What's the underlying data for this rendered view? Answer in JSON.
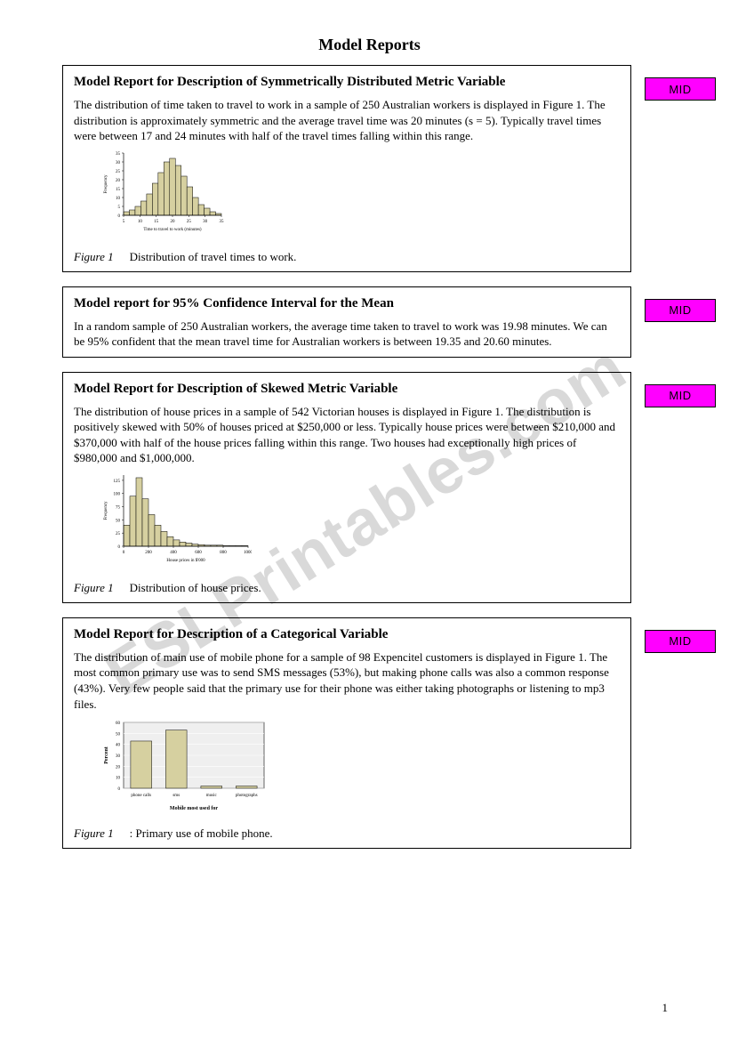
{
  "page": {
    "title": "Model Reports",
    "number": "1",
    "watermark": "ESLPrintables.com"
  },
  "sections": [
    {
      "title": "Model Report for Description of Symmetrically Distributed Metric Variable",
      "badge": "MID",
      "body": "The distribution of time taken to travel to work in a sample of 250 Australian workers is displayed in Figure 1. The distribution is approximately symmetric and the average travel time was 20 minutes (s = 5). Typically travel times were between 17 and 24 minutes with half of the travel times falling within this range.",
      "figure": {
        "label": "Figure 1",
        "caption": "Distribution of travel times to work.",
        "chart": {
          "type": "histogram",
          "width": 140,
          "height": 100,
          "bar_color": "#d6d0a0",
          "bar_border": "#000000",
          "axis_color": "#000000",
          "background": "#ffffff",
          "xlabel": "Time to travel to work (minutes)",
          "ylabel": "Frequency",
          "x_ticks": [
            5,
            10,
            15,
            20,
            25,
            30,
            35
          ],
          "y_ticks": [
            0,
            5,
            10,
            15,
            20,
            25,
            30,
            35
          ],
          "values": [
            2,
            3,
            5,
            8,
            12,
            18,
            24,
            30,
            32,
            28,
            22,
            16,
            10,
            6,
            4,
            2,
            1
          ],
          "ymax": 35
        }
      }
    },
    {
      "title": "Model report for 95% Confidence Interval for the Mean",
      "badge": "MID",
      "body": "In a random sample of 250 Australian workers, the average time taken to travel to work was 19.98 minutes. We can be 95% confident that the mean travel time for Australian workers is between 19.35 and 20.60 minutes."
    },
    {
      "title": "Model Report for Description of Skewed Metric Variable",
      "badge": "MID",
      "body": "The distribution of house prices in a sample of 542 Victorian houses is displayed in Figure 1. The distribution is positively skewed with 50% of houses priced at $250,000 or less. Typically house prices were between $210,000 and $370,000 with half of the house prices falling within this range. Two houses had exceptionally high prices of $980,000 and $1,000,000.",
      "figure": {
        "label": "Figure 1",
        "caption": "Distribution of house prices.",
        "chart": {
          "type": "histogram",
          "width": 170,
          "height": 110,
          "bar_color": "#d6d0a0",
          "bar_border": "#000000",
          "axis_color": "#000000",
          "background": "#ffffff",
          "xlabel": "House prices in $'000",
          "ylabel": "Frequency",
          "x_ticks": [
            0,
            200,
            400,
            600,
            800,
            1000
          ],
          "y_ticks": [
            0,
            25,
            50,
            75,
            100,
            125
          ],
          "values": [
            40,
            95,
            130,
            90,
            60,
            40,
            28,
            18,
            12,
            8,
            6,
            4,
            3,
            2,
            2,
            2,
            1,
            1,
            1,
            1
          ],
          "ymax": 135
        }
      }
    },
    {
      "title": "Model Report for Description of a Categorical Variable",
      "badge": "MID",
      "body": "The distribution of main use of mobile phone for a sample of 98 Expencitel customers is displayed in Figure 1. The most common primary use was to send SMS messages (53%), but making phone calls was also a common response (43%). Very few people said that the primary use for their phone was either taking photographs or listening to mp3 files.",
      "figure": {
        "label": "Figure 1",
        "caption": ": Primary use of mobile phone.",
        "chart": {
          "type": "bar",
          "width": 190,
          "height": 110,
          "bar_color": "#d6d0a0",
          "bar_border": "#000000",
          "axis_color": "#000000",
          "plot_background": "#efefef",
          "xlabel": "Mobile most used for",
          "ylabel": "Percent",
          "categories": [
            "phone calls",
            "sms",
            "music",
            "photographs"
          ],
          "values": [
            43,
            53,
            2,
            2
          ],
          "y_ticks": [
            0,
            10,
            20,
            30,
            40,
            50,
            60
          ],
          "ymax": 60
        }
      }
    }
  ]
}
